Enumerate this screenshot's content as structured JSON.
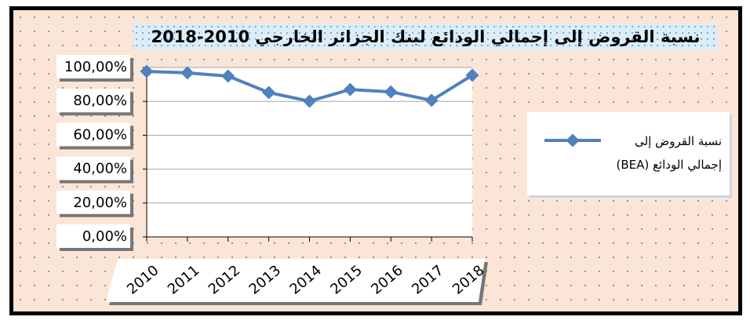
{
  "chart_data": {
    "type": "line",
    "title": "نسبة القروض إلى إجمالي الودائع لبنك الجزائر الخارجي 2010-2018",
    "categories": [
      "2010",
      "2011",
      "2012",
      "2013",
      "2014",
      "2015",
      "2016",
      "2017",
      "2018"
    ],
    "series": [
      {
        "name": "نسبة القروض إلى إجمالي الودائع (BEA)",
        "color": "#4f81bd",
        "values": [
          97.7,
          96.8,
          94.9,
          85.2,
          80.1,
          87.0,
          85.6,
          80.6,
          95.4
        ]
      }
    ],
    "ylim": [
      0,
      100
    ],
    "yticks": [
      {
        "value": 0,
        "label": "0,00%"
      },
      {
        "value": 20,
        "label": "20,00%"
      },
      {
        "value": 40,
        "label": "40,00%"
      },
      {
        "value": 60,
        "label": "60,00%"
      },
      {
        "value": 80,
        "label": "80,00%"
      },
      {
        "value": 100,
        "label": "100,00%"
      }
    ],
    "grid": true,
    "legend": "right"
  }
}
